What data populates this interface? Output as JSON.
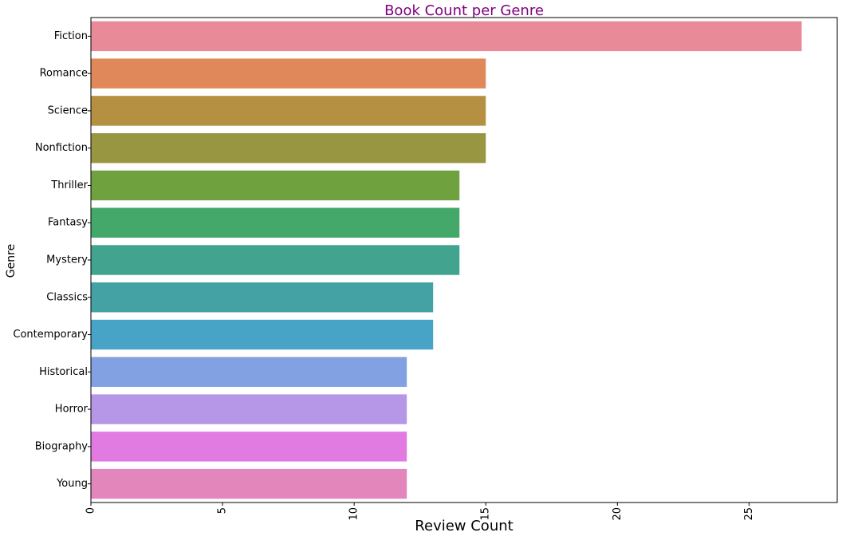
{
  "chart_data": {
    "type": "bar",
    "orientation": "horizontal",
    "title": "Book Count per Genre",
    "title_color": "#800080",
    "xlabel": "Review Count",
    "ylabel": "Genre",
    "xlim": [
      0,
      28.35
    ],
    "xticks": [
      0,
      5,
      10,
      15,
      20,
      25
    ],
    "grid": false,
    "legend": "none",
    "categories": [
      "Fiction",
      "Romance",
      "Science",
      "Nonfiction",
      "Thriller",
      "Fantasy",
      "Mystery",
      "Classics",
      "Contemporary",
      "Historical",
      "Horror",
      "Biography",
      "Young"
    ],
    "values": [
      27,
      15,
      15,
      15,
      14,
      14,
      14,
      13,
      13,
      12,
      12,
      12,
      12
    ],
    "colors": [
      "#e88a97",
      "#e0885a",
      "#b58f42",
      "#989640",
      "#6fa23f",
      "#43a86a",
      "#42a38f",
      "#44a2a4",
      "#48a4c6",
      "#82a1e3",
      "#b697e7",
      "#e17be1",
      "#e286bb"
    ]
  }
}
